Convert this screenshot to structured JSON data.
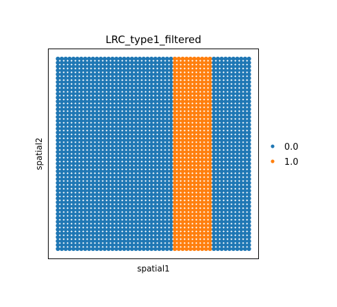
{
  "chart_data": {
    "type": "scatter",
    "title": "LRC_type1_filtered",
    "xlabel": "spatial1",
    "ylabel": "spatial2",
    "grid": false,
    "axis_ticks": false,
    "legend": {
      "position": "right",
      "marker": "dot"
    },
    "categories": [
      "0.0",
      "1.0"
    ],
    "colors": {
      "0.0": "#1f77b4",
      "1.0": "#ff7f0e"
    },
    "spot_grid": {
      "columns": 50,
      "rows": 50
    },
    "series": [
      {
        "name": "0.0",
        "color": "#1f77b4",
        "x_range": [
          0,
          29
        ],
        "y_range": [
          0,
          49
        ]
      },
      {
        "name": "1.0",
        "color": "#ff7f0e",
        "x_range": [
          30,
          39
        ],
        "y_range": [
          0,
          49
        ]
      },
      {
        "name": "0.0",
        "color": "#1f77b4",
        "x_range": [
          40,
          49
        ],
        "y_range": [
          0,
          49
        ]
      }
    ]
  }
}
